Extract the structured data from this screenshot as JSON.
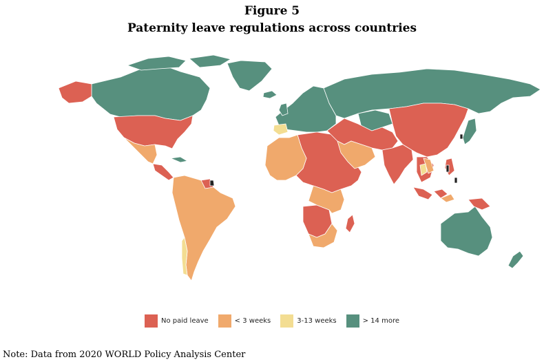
{
  "figure": {
    "label": "Figure 5",
    "title": "Paternity leave regulations across countries"
  },
  "colors": {
    "no_paid": "#dc6153",
    "lt3": "#f0a96c",
    "w3_13": "#f3dd92",
    "gt14": "#57907e",
    "no_data": "#222222",
    "border": "#ffffff"
  },
  "legend": [
    {
      "label": "No paid leave",
      "color": "#dc6153"
    },
    {
      "label": "< 3 weeks",
      "color": "#f0a96c"
    },
    {
      "label": "3-13 weeks",
      "color": "#f3dd92"
    },
    {
      "label": "> 14 more",
      "color": "#57907e"
    }
  ],
  "note": "Note: Data from 2020 WORLD Policy Analysis Center"
}
